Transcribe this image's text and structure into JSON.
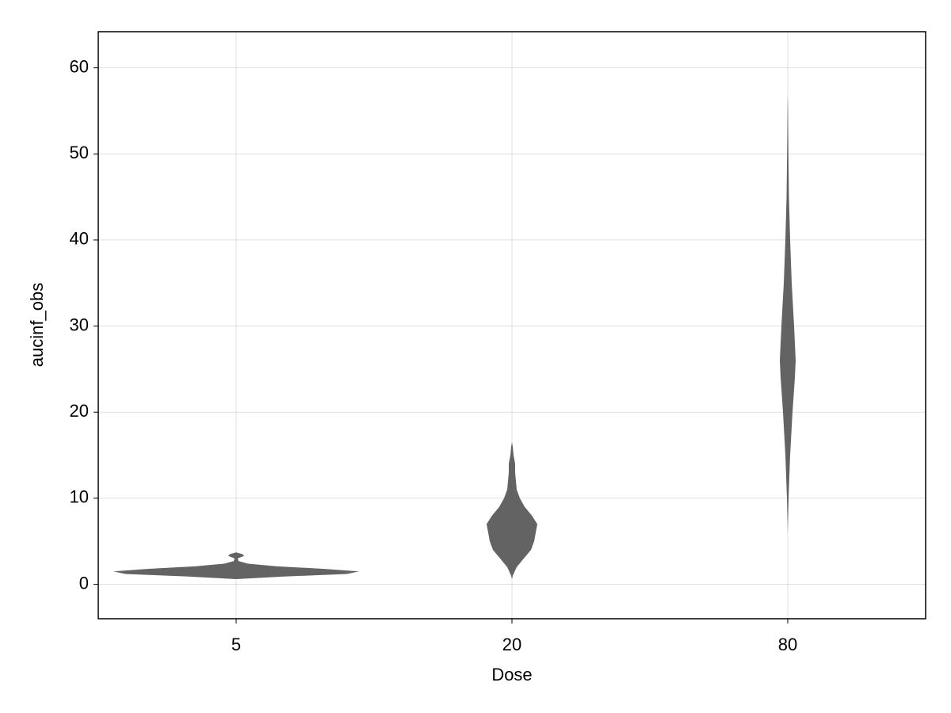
{
  "chart_data": {
    "type": "violin",
    "xlabel": "Dose",
    "ylabel": "aucinf_obs",
    "categories": [
      "5",
      "20",
      "80"
    ],
    "violins": [
      {
        "y": [
          0.6,
          0.9,
          1.2,
          1.5,
          1.8,
          2.1,
          2.4,
          2.7,
          3.0,
          3.3,
          3.5,
          3.7
        ],
        "half_width": [
          0,
          60,
          140,
          155,
          110,
          50,
          15,
          3,
          2,
          10,
          8,
          0
        ]
      },
      {
        "y": [
          0.6,
          1,
          2,
          3,
          4,
          5,
          6,
          7,
          8,
          9,
          10,
          11,
          12,
          13,
          14,
          15,
          16,
          16.5
        ],
        "half_width": [
          0,
          1,
          6,
          15,
          24,
          28,
          30,
          32,
          25,
          16,
          10,
          6,
          5,
          4,
          4,
          2,
          1,
          0
        ]
      },
      {
        "y": [
          6,
          10,
          15,
          20,
          24,
          26,
          28,
          30,
          35,
          40,
          45,
          50,
          55,
          57
        ],
        "half_width": [
          0,
          1,
          3,
          6,
          9,
          10,
          9,
          8,
          5,
          3,
          1.5,
          0.8,
          0.3,
          0
        ]
      }
    ],
    "color": "#4d4d4d",
    "ylim": [
      -4,
      64.2
    ],
    "yticks": [
      0,
      10,
      20,
      30,
      40,
      50,
      60
    ],
    "grid": true
  }
}
